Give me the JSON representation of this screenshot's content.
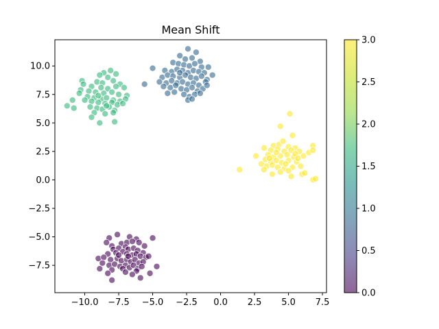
{
  "chart_data": {
    "type": "scatter",
    "title": "Mean Shift",
    "xlabel": "",
    "ylabel": "",
    "xlim": [
      -12.2,
      7.8
    ],
    "ylim": [
      -9.9,
      12.3
    ],
    "xticks": [
      -10.0,
      -7.5,
      -5.0,
      -2.5,
      0.0,
      2.5,
      5.0,
      7.5
    ],
    "xtick_labels": [
      "−10.0",
      "−7.5",
      "−5.0",
      "−2.5",
      "0.0",
      "2.5",
      "5.0",
      "7.5"
    ],
    "yticks": [
      -7.5,
      -5.0,
      -2.5,
      0.0,
      2.5,
      5.0,
      7.5,
      10.0
    ],
    "ytick_labels": [
      "−7.5",
      "−5.0",
      "−2.5",
      "0.0",
      "2.5",
      "5.0",
      "7.5",
      "10.0"
    ],
    "grid": false,
    "colormap": "viridis",
    "colorbar": {
      "range": [
        0.0,
        3.0
      ],
      "ticks": [
        0.0,
        0.5,
        1.0,
        1.5,
        2.0,
        2.5,
        3.0
      ],
      "tick_labels": [
        "0.0",
        "0.5",
        "1.0",
        "1.5",
        "2.0",
        "2.5",
        "3.0"
      ],
      "alpha": 0.6
    },
    "clusters": [
      {
        "label": 0,
        "color": "#440154",
        "points": [
          [
            -8.2,
            -5.1
          ],
          [
            -7.6,
            -4.8
          ],
          [
            -6.7,
            -5.0
          ],
          [
            -6.2,
            -5.2
          ],
          [
            -5.0,
            -5.1
          ],
          [
            -8.4,
            -5.5
          ],
          [
            -8.0,
            -5.8
          ],
          [
            -7.3,
            -5.6
          ],
          [
            -6.9,
            -5.5
          ],
          [
            -6.5,
            -5.4
          ],
          [
            -6.0,
            -5.5
          ],
          [
            -5.6,
            -5.8
          ],
          [
            -7.9,
            -6.1
          ],
          [
            -7.5,
            -6.0
          ],
          [
            -7.0,
            -5.9
          ],
          [
            -6.8,
            -6.1
          ],
          [
            -6.4,
            -6.0
          ],
          [
            -6.1,
            -6.2
          ],
          [
            -5.7,
            -6.4
          ],
          [
            -8.3,
            -6.5
          ],
          [
            -7.7,
            -6.4
          ],
          [
            -7.2,
            -6.3
          ],
          [
            -6.9,
            -6.5
          ],
          [
            -6.5,
            -6.6
          ],
          [
            -6.2,
            -6.5
          ],
          [
            -5.9,
            -6.7
          ],
          [
            -5.5,
            -6.8
          ],
          [
            -5.3,
            -6.7
          ],
          [
            -9.0,
            -6.9
          ],
          [
            -8.6,
            -6.8
          ],
          [
            -8.1,
            -7.0
          ],
          [
            -7.6,
            -6.9
          ],
          [
            -7.3,
            -7.1
          ],
          [
            -6.9,
            -7.0
          ],
          [
            -6.6,
            -7.2
          ],
          [
            -6.3,
            -7.0
          ],
          [
            -6.0,
            -7.3
          ],
          [
            -5.7,
            -7.2
          ],
          [
            -8.7,
            -7.3
          ],
          [
            -8.2,
            -7.5
          ],
          [
            -7.8,
            -7.4
          ],
          [
            -7.4,
            -7.6
          ],
          [
            -7.0,
            -7.5
          ],
          [
            -6.7,
            -7.7
          ],
          [
            -6.4,
            -7.5
          ],
          [
            -6.1,
            -7.8
          ],
          [
            -5.8,
            -7.6
          ],
          [
            -4.7,
            -7.6
          ],
          [
            -8.9,
            -7.8
          ],
          [
            -8.0,
            -7.9
          ],
          [
            -7.2,
            -7.8
          ],
          [
            -6.2,
            -8.0
          ],
          [
            -5.2,
            -8.2
          ],
          [
            -8.3,
            -8.2
          ],
          [
            -7.0,
            -8.1
          ],
          [
            -6.5,
            -8.3
          ],
          [
            -5.9,
            -8.6
          ],
          [
            -8.0,
            -8.8
          ],
          [
            -6.8,
            -6.7
          ],
          [
            -7.5,
            -6.6
          ]
        ]
      },
      {
        "label": 1,
        "color": "#31688e",
        "points": [
          [
            -2.4,
            11.5
          ],
          [
            -1.8,
            11.2
          ],
          [
            -3.0,
            10.9
          ],
          [
            -2.6,
            10.6
          ],
          [
            -2.1,
            10.7
          ],
          [
            -1.5,
            10.4
          ],
          [
            -3.5,
            10.3
          ],
          [
            -3.1,
            10.2
          ],
          [
            -2.7,
            10.1
          ],
          [
            -2.3,
            10.0
          ],
          [
            -1.9,
            10.2
          ],
          [
            -1.4,
            9.9
          ],
          [
            -0.9,
            9.9
          ],
          [
            -5.0,
            9.8
          ],
          [
            -4.1,
            9.6
          ],
          [
            -3.6,
            9.5
          ],
          [
            -3.2,
            9.7
          ],
          [
            -2.8,
            9.6
          ],
          [
            -2.4,
            9.4
          ],
          [
            -2.0,
            9.6
          ],
          [
            -1.6,
            9.5
          ],
          [
            -1.2,
            9.4
          ],
          [
            -0.6,
            9.2
          ],
          [
            -4.3,
            9.0
          ],
          [
            -3.9,
            9.2
          ],
          [
            -3.5,
            9.1
          ],
          [
            -3.0,
            9.0
          ],
          [
            -2.6,
            9.2
          ],
          [
            -2.2,
            9.0
          ],
          [
            -1.8,
            8.9
          ],
          [
            -1.4,
            9.1
          ],
          [
            -1.0,
            8.8
          ],
          [
            -4.5,
            8.6
          ],
          [
            -4.0,
            8.5
          ],
          [
            -3.6,
            8.7
          ],
          [
            -3.2,
            8.5
          ],
          [
            -2.8,
            8.6
          ],
          [
            -2.4,
            8.4
          ],
          [
            -2.0,
            8.5
          ],
          [
            -1.6,
            8.3
          ],
          [
            -1.1,
            8.6
          ],
          [
            -5.6,
            8.4
          ],
          [
            -4.2,
            8.2
          ],
          [
            -3.7,
            8.1
          ],
          [
            -3.3,
            8.3
          ],
          [
            -2.9,
            8.0
          ],
          [
            -2.5,
            7.9
          ],
          [
            -2.1,
            8.1
          ],
          [
            -1.7,
            7.8
          ],
          [
            -1.3,
            8.0
          ],
          [
            -3.9,
            7.6
          ],
          [
            -3.4,
            7.7
          ],
          [
            -2.7,
            7.5
          ],
          [
            -2.3,
            7.3
          ],
          [
            -1.9,
            7.5
          ],
          [
            -2.4,
            7.0
          ],
          [
            -2.1,
            7.1
          ],
          [
            -1.5,
            7.6
          ],
          [
            -1.0,
            8.3
          ],
          [
            -3.0,
            9.4
          ]
        ]
      },
      {
        "label": 2,
        "color": "#35b779",
        "points": [
          [
            -8.1,
            9.6
          ],
          [
            -8.6,
            9.4
          ],
          [
            -7.7,
            9.3
          ],
          [
            -8.9,
            9.2
          ],
          [
            -8.3,
            9.0
          ],
          [
            -10.2,
            8.7
          ],
          [
            -9.1,
            8.6
          ],
          [
            -8.7,
            8.5
          ],
          [
            -7.9,
            8.7
          ],
          [
            -7.4,
            8.4
          ],
          [
            -10.1,
            8.4
          ],
          [
            -9.5,
            8.2
          ],
          [
            -8.8,
            8.1
          ],
          [
            -8.3,
            8.0
          ],
          [
            -7.7,
            8.2
          ],
          [
            -7.1,
            8.1
          ],
          [
            -10.3,
            7.9
          ],
          [
            -9.7,
            7.8
          ],
          [
            -9.2,
            7.7
          ],
          [
            -8.6,
            7.6
          ],
          [
            -8.0,
            7.7
          ],
          [
            -7.5,
            7.5
          ],
          [
            -6.9,
            7.4
          ],
          [
            -10.4,
            7.6
          ],
          [
            -9.8,
            7.3
          ],
          [
            -9.3,
            7.2
          ],
          [
            -8.8,
            7.1
          ],
          [
            -8.4,
            7.2
          ],
          [
            -7.9,
            7.0
          ],
          [
            -7.4,
            6.9
          ],
          [
            -7.0,
            7.1
          ],
          [
            -10.0,
            7.0
          ],
          [
            -9.5,
            6.9
          ],
          [
            -9.0,
            6.8
          ],
          [
            -8.5,
            6.7
          ],
          [
            -8.0,
            6.8
          ],
          [
            -7.6,
            6.6
          ],
          [
            -7.2,
            6.7
          ],
          [
            -11.3,
            6.5
          ],
          [
            -10.8,
            6.3
          ],
          [
            -9.6,
            6.4
          ],
          [
            -9.1,
            6.3
          ],
          [
            -8.7,
            6.2
          ],
          [
            -8.2,
            6.4
          ],
          [
            -7.8,
            6.1
          ],
          [
            -9.3,
            5.9
          ],
          [
            -8.5,
            5.8
          ],
          [
            -7.9,
            5.9
          ],
          [
            -9.5,
            5.5
          ],
          [
            -8.9,
            5.0
          ],
          [
            -7.8,
            5.1
          ],
          [
            -10.9,
            7.0
          ],
          [
            -8.4,
            6.5
          ],
          [
            -9.0,
            7.4
          ]
        ]
      },
      {
        "label": 3,
        "color": "#fde725",
        "points": [
          [
            5.1,
            5.8
          ],
          [
            4.4,
            4.7
          ],
          [
            5.3,
            3.9
          ],
          [
            3.9,
            3.0
          ],
          [
            4.3,
            3.1
          ],
          [
            4.6,
            3.4
          ],
          [
            5.0,
            2.9
          ],
          [
            5.5,
            2.8
          ],
          [
            6.8,
            3.0
          ],
          [
            3.2,
            2.8
          ],
          [
            3.7,
            2.6
          ],
          [
            4.2,
            2.7
          ],
          [
            4.7,
            2.5
          ],
          [
            5.2,
            2.6
          ],
          [
            5.8,
            2.5
          ],
          [
            6.5,
            2.4
          ],
          [
            6.8,
            2.6
          ],
          [
            2.6,
            2.1
          ],
          [
            3.5,
            2.2
          ],
          [
            3.9,
            2.0
          ],
          [
            4.4,
            2.1
          ],
          [
            4.9,
            2.2
          ],
          [
            5.4,
            2.0
          ],
          [
            6.1,
            2.1
          ],
          [
            3.3,
            1.8
          ],
          [
            3.7,
            1.6
          ],
          [
            4.1,
            1.7
          ],
          [
            4.5,
            1.5
          ],
          [
            5.0,
            1.7
          ],
          [
            5.6,
            1.6
          ],
          [
            3.0,
            1.4
          ],
          [
            3.4,
            1.2
          ],
          [
            3.8,
            1.3
          ],
          [
            4.2,
            1.1
          ],
          [
            4.7,
            1.0
          ],
          [
            5.3,
            1.1
          ],
          [
            5.9,
            1.2
          ],
          [
            1.4,
            0.9
          ],
          [
            3.2,
            0.9
          ],
          [
            4.4,
            0.7
          ],
          [
            5.0,
            0.8
          ],
          [
            6.0,
            0.5
          ],
          [
            6.2,
            0.6
          ],
          [
            3.8,
            0.5
          ],
          [
            5.2,
            0.3
          ],
          [
            6.8,
            0.0
          ],
          [
            7.0,
            0.1
          ],
          [
            4.1,
            2.4
          ],
          [
            5.5,
            2.3
          ],
          [
            3.6,
            1.9
          ],
          [
            4.8,
            1.4
          ],
          [
            5.7,
            1.9
          ]
        ]
      }
    ]
  }
}
